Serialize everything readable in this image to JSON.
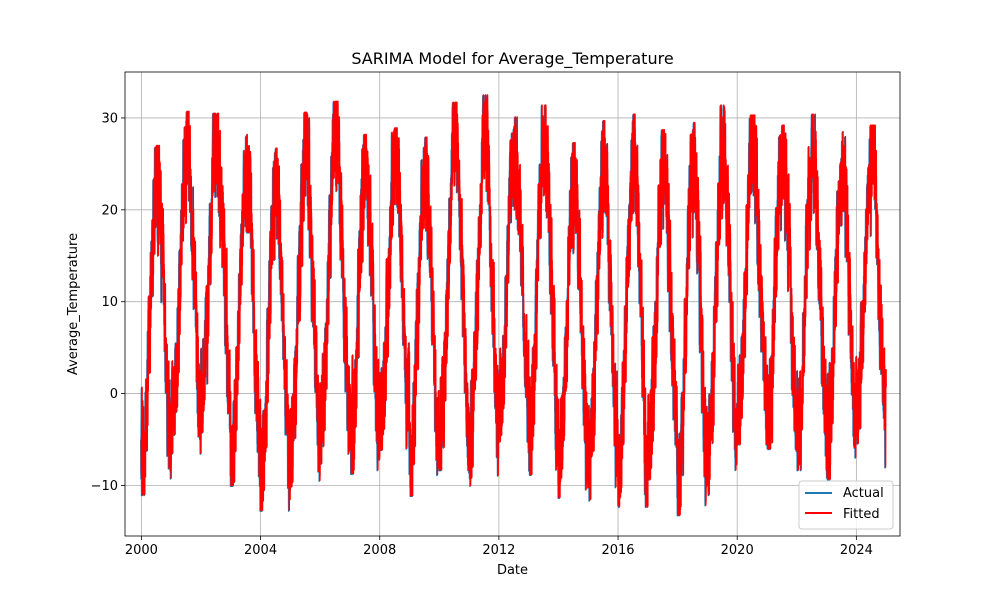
{
  "chart_data": {
    "type": "line",
    "title": "SARIMA Model for Average_Temperature",
    "xlabel": "Date",
    "ylabel": "Average_Temperature",
    "x_range": [
      "2000-01-01",
      "2024-12-31"
    ],
    "xlim": [
      "1999-06-14",
      "2025-06-19"
    ],
    "ylim": [
      -15.5,
      35
    ],
    "x_ticks": [
      "2000",
      "2004",
      "2008",
      "2012",
      "2016",
      "2020",
      "2024"
    ],
    "y_ticks": [
      -10,
      0,
      10,
      20,
      30
    ],
    "grid": true,
    "legend_position": "lower-right",
    "series_style": "daily series, strong annual seasonality with high-frequency day-to-day variation; fitted overlays actual almost exactly",
    "annual_extremes": [
      {
        "year": 2000,
        "min": -11.0,
        "max": 27.0
      },
      {
        "year": 2001,
        "min": -6.5,
        "max": 30.7
      },
      {
        "year": 2002,
        "min": -4.2,
        "max": 30.5
      },
      {
        "year": 2003,
        "min": -10.0,
        "max": 28.2
      },
      {
        "year": 2004,
        "min": -12.7,
        "max": 26.7
      },
      {
        "year": 2005,
        "min": -10.1,
        "max": 30.6
      },
      {
        "year": 2006,
        "min": -7.6,
        "max": 31.8
      },
      {
        "year": 2007,
        "min": -8.7,
        "max": 28.2
      },
      {
        "year": 2008,
        "min": -6.1,
        "max": 28.9
      },
      {
        "year": 2009,
        "min": -11.1,
        "max": 27.9
      },
      {
        "year": 2010,
        "min": -8.3,
        "max": 31.7
      },
      {
        "year": 2011,
        "min": -10.0,
        "max": 32.5
      },
      {
        "year": 2012,
        "min": -5.2,
        "max": 30.1
      },
      {
        "year": 2013,
        "min": -8.8,
        "max": 31.4
      },
      {
        "year": 2014,
        "min": -11.3,
        "max": 27.3
      },
      {
        "year": 2015,
        "min": -11.6,
        "max": 29.7
      },
      {
        "year": 2016,
        "min": -12.3,
        "max": 30.4
      },
      {
        "year": 2017,
        "min": -9.3,
        "max": 28.7
      },
      {
        "year": 2018,
        "min": -13.2,
        "max": 29.5
      },
      {
        "year": 2019,
        "min": -11.0,
        "max": 31.4
      },
      {
        "year": 2020,
        "min": -5.5,
        "max": 30.3
      },
      {
        "year": 2021,
        "min": -6.0,
        "max": 29.2
      },
      {
        "year": 2022,
        "min": -8.3,
        "max": 30.4
      },
      {
        "year": 2023,
        "min": -9.3,
        "max": 28.5
      },
      {
        "year": 2024,
        "min": -5.4,
        "max": 29.2
      }
    ],
    "end_min": -8.0,
    "series": [
      {
        "name": "Actual",
        "color": "#1f77b4"
      },
      {
        "name": "Fitted",
        "color": "#ff0000"
      }
    ]
  }
}
